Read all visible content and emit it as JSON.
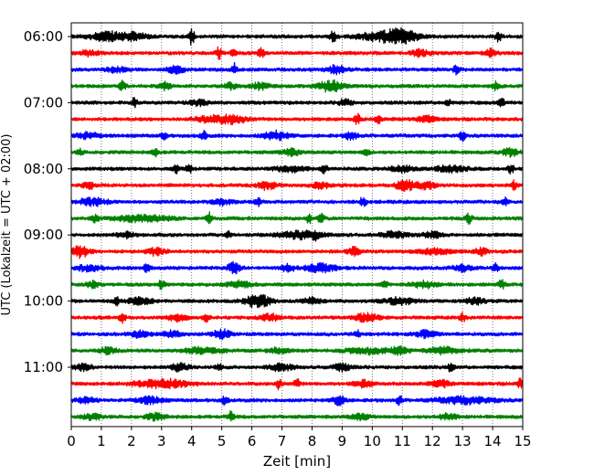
{
  "chart_data": {
    "type": "line",
    "xlabel": "Zeit  [min]",
    "ylabel": "UTC (Lokalzeit = UTC + 02:00)",
    "xlim": [
      0,
      15
    ],
    "x_ticks": [
      0,
      1,
      2,
      3,
      4,
      5,
      6,
      7,
      8,
      9,
      10,
      11,
      12,
      13,
      14,
      15
    ],
    "y_tick_labels": [
      "06:00",
      "07:00",
      "08:00",
      "09:00",
      "10:00",
      "11:00"
    ],
    "y_tick_rows": [
      0,
      4,
      8,
      12,
      16,
      20
    ],
    "vertical_grid": "dotted",
    "trace_colors": [
      "#000000",
      "#ff0000",
      "#0000ff",
      "#008000"
    ],
    "traces": [
      {
        "label": "06:00",
        "color": "#000000",
        "events": [
          [
            1.2,
            9,
            0.6
          ],
          [
            2.1,
            7,
            0.4
          ],
          [
            4.0,
            16,
            0.1
          ],
          [
            8.7,
            12,
            0.1
          ],
          [
            10.4,
            9,
            0.9
          ],
          [
            11.0,
            10,
            0.5
          ],
          [
            14.2,
            11,
            0.1
          ]
        ]
      },
      {
        "label": "06:15",
        "color": "#ff0000",
        "events": [
          [
            0.6,
            6,
            0.3
          ],
          [
            4.9,
            12,
            0.1
          ],
          [
            5.4,
            8,
            0.1
          ],
          [
            6.3,
            10,
            0.1
          ],
          [
            11.6,
            7,
            0.3
          ],
          [
            13.9,
            8,
            0.2
          ]
        ]
      },
      {
        "label": "06:30",
        "color": "#0000ff",
        "events": [
          [
            1.5,
            5,
            0.3
          ],
          [
            3.5,
            7,
            0.3
          ],
          [
            5.4,
            12,
            0.1
          ],
          [
            8.8,
            8,
            0.3
          ],
          [
            12.8,
            9,
            0.1
          ]
        ]
      },
      {
        "label": "06:45",
        "color": "#008000",
        "events": [
          [
            1.7,
            10,
            0.1
          ],
          [
            3.1,
            7,
            0.2
          ],
          [
            5.3,
            7,
            0.2
          ],
          [
            6.3,
            7,
            0.3
          ],
          [
            8.6,
            12,
            0.4
          ],
          [
            14.1,
            8,
            0.1
          ]
        ]
      },
      {
        "label": "07:00",
        "color": "#000000",
        "events": [
          [
            2.1,
            9,
            0.1
          ],
          [
            4.2,
            6,
            0.3
          ],
          [
            9.1,
            7,
            0.2
          ],
          [
            12.5,
            8,
            0.1
          ],
          [
            14.3,
            9,
            0.1
          ]
        ]
      },
      {
        "label": "07:15",
        "color": "#ff0000",
        "events": [
          [
            4.5,
            6,
            0.4
          ],
          [
            5.3,
            9,
            0.5
          ],
          [
            9.5,
            11,
            0.1
          ],
          [
            10.2,
            9,
            0.1
          ],
          [
            11.8,
            7,
            0.3
          ]
        ]
      },
      {
        "label": "07:30",
        "color": "#0000ff",
        "events": [
          [
            0.5,
            6,
            0.4
          ],
          [
            3.1,
            8,
            0.1
          ],
          [
            4.4,
            10,
            0.1
          ],
          [
            6.8,
            9,
            0.4
          ],
          [
            9.3,
            8,
            0.2
          ],
          [
            13.0,
            9,
            0.1
          ]
        ]
      },
      {
        "label": "07:45",
        "color": "#008000",
        "events": [
          [
            0.3,
            6,
            0.1
          ],
          [
            2.8,
            9,
            0.1
          ],
          [
            7.3,
            7,
            0.3
          ],
          [
            9.8,
            8,
            0.1
          ],
          [
            14.6,
            7,
            0.3
          ]
        ]
      },
      {
        "label": "08:00",
        "color": "#000000",
        "events": [
          [
            3.5,
            8,
            0.1
          ],
          [
            3.9,
            9,
            0.1
          ],
          [
            7.3,
            6,
            0.5
          ],
          [
            8.4,
            8,
            0.1
          ],
          [
            11.0,
            6,
            0.4
          ],
          [
            12.6,
            7,
            0.5
          ],
          [
            14.6,
            10,
            0.1
          ]
        ]
      },
      {
        "label": "08:15",
        "color": "#ff0000",
        "events": [
          [
            0.6,
            6,
            0.2
          ],
          [
            6.5,
            8,
            0.3
          ],
          [
            8.3,
            6,
            0.3
          ],
          [
            11.1,
            12,
            0.3
          ],
          [
            11.8,
            7,
            0.3
          ],
          [
            14.7,
            8,
            0.1
          ]
        ]
      },
      {
        "label": "08:30",
        "color": "#0000ff",
        "events": [
          [
            0.7,
            7,
            0.5
          ],
          [
            5.0,
            6,
            0.3
          ],
          [
            6.2,
            9,
            0.1
          ],
          [
            9.7,
            10,
            0.1
          ],
          [
            14.4,
            8,
            0.1
          ]
        ]
      },
      {
        "label": "08:45",
        "color": "#008000",
        "events": [
          [
            0.8,
            8,
            0.1
          ],
          [
            2.4,
            7,
            0.9
          ],
          [
            4.6,
            11,
            0.1
          ],
          [
            7.9,
            9,
            0.1
          ],
          [
            8.3,
            9,
            0.1
          ],
          [
            13.2,
            10,
            0.1
          ]
        ]
      },
      {
        "label": "09:00",
        "color": "#000000",
        "events": [
          [
            1.8,
            6,
            0.3
          ],
          [
            5.2,
            8,
            0.1
          ],
          [
            7.6,
            8,
            0.7
          ],
          [
            8.1,
            7,
            0.1
          ],
          [
            10.7,
            7,
            0.4
          ],
          [
            12.0,
            6,
            0.3
          ]
        ]
      },
      {
        "label": "09:15",
        "color": "#ff0000",
        "events": [
          [
            0.3,
            12,
            0.3
          ],
          [
            2.8,
            7,
            0.3
          ],
          [
            9.4,
            9,
            0.2
          ],
          [
            12.1,
            6,
            0.5
          ],
          [
            13.6,
            7,
            0.2
          ]
        ]
      },
      {
        "label": "09:30",
        "color": "#0000ff",
        "events": [
          [
            0.6,
            7,
            0.4
          ],
          [
            2.5,
            8,
            0.1
          ],
          [
            5.4,
            11,
            0.2
          ],
          [
            7.2,
            8,
            0.2
          ],
          [
            8.3,
            9,
            0.5
          ],
          [
            13.0,
            7,
            0.3
          ],
          [
            14.1,
            8,
            0.1
          ]
        ]
      },
      {
        "label": "09:45",
        "color": "#008000",
        "events": [
          [
            0.7,
            7,
            0.2
          ],
          [
            3.0,
            9,
            0.1
          ],
          [
            5.6,
            7,
            0.4
          ],
          [
            10.4,
            8,
            0.1
          ],
          [
            11.7,
            7,
            0.4
          ],
          [
            14.3,
            9,
            0.1
          ]
        ]
      },
      {
        "label": "10:00",
        "color": "#000000",
        "events": [
          [
            1.5,
            8,
            0.1
          ],
          [
            2.3,
            7,
            0.4
          ],
          [
            6.2,
            14,
            0.4
          ],
          [
            8.0,
            7,
            0.3
          ],
          [
            10.9,
            7,
            0.5
          ],
          [
            13.4,
            7,
            0.3
          ]
        ]
      },
      {
        "label": "10:15",
        "color": "#ff0000",
        "events": [
          [
            1.7,
            9,
            0.1
          ],
          [
            3.5,
            7,
            0.3
          ],
          [
            4.5,
            9,
            0.1
          ],
          [
            6.6,
            7,
            0.3
          ],
          [
            9.8,
            8,
            0.4
          ],
          [
            13.0,
            9,
            0.1
          ]
        ]
      },
      {
        "label": "10:30",
        "color": "#0000ff",
        "events": [
          [
            2.3,
            8,
            0.3
          ],
          [
            3.3,
            7,
            0.3
          ],
          [
            5.0,
            9,
            0.3
          ],
          [
            9.5,
            9,
            0.1
          ],
          [
            11.8,
            7,
            0.3
          ]
        ]
      },
      {
        "label": "10:45",
        "color": "#008000",
        "events": [
          [
            1.2,
            6,
            0.3
          ],
          [
            4.4,
            7,
            0.6
          ],
          [
            6.9,
            6,
            0.3
          ],
          [
            9.8,
            7,
            0.6
          ],
          [
            10.9,
            8,
            0.3
          ],
          [
            12.4,
            7,
            0.5
          ]
        ]
      },
      {
        "label": "11:00",
        "color": "#000000",
        "events": [
          [
            0.4,
            6,
            0.3
          ],
          [
            3.6,
            7,
            0.3
          ],
          [
            4.9,
            8,
            0.1
          ],
          [
            7.0,
            7,
            0.4
          ],
          [
            9.0,
            7,
            0.3
          ],
          [
            12.6,
            8,
            0.1
          ]
        ]
      },
      {
        "label": "11:15",
        "color": "#ff0000",
        "events": [
          [
            3.0,
            9,
            0.9
          ],
          [
            6.9,
            10,
            0.1
          ],
          [
            7.5,
            9,
            0.1
          ],
          [
            9.7,
            7,
            0.3
          ],
          [
            12.3,
            7,
            0.3
          ],
          [
            14.9,
            9,
            0.1
          ]
        ]
      },
      {
        "label": "11:30",
        "color": "#0000ff",
        "events": [
          [
            0.5,
            6,
            0.3
          ],
          [
            2.6,
            7,
            0.4
          ],
          [
            5.1,
            9,
            0.1
          ],
          [
            8.9,
            10,
            0.2
          ],
          [
            10.9,
            9,
            0.1
          ],
          [
            13.1,
            7,
            0.9
          ]
        ]
      },
      {
        "label": "11:45",
        "color": "#008000",
        "events": [
          [
            0.7,
            6,
            0.3
          ],
          [
            2.8,
            7,
            0.3
          ],
          [
            5.3,
            11,
            0.1
          ],
          [
            9.6,
            6,
            0.3
          ],
          [
            12.5,
            6,
            0.3
          ]
        ]
      }
    ]
  }
}
